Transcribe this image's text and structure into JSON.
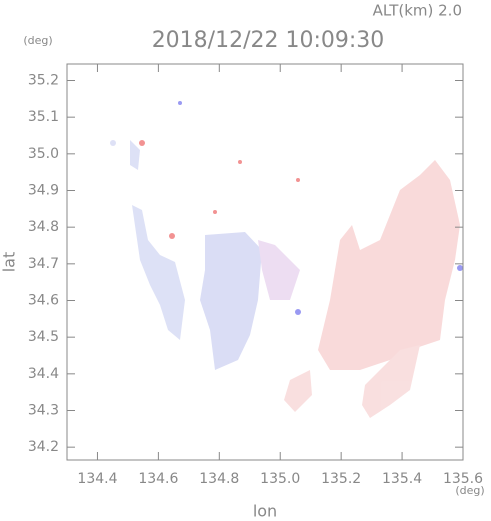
{
  "chart_data": {
    "type": "map",
    "title": "2018/12/22 10:09:30",
    "subtitle": "ALT(km) 2.0",
    "x_label": "lon",
    "y_label": "lat",
    "x_unit": "(deg)",
    "y_unit": "(deg)",
    "xlim": [
      134.3,
      135.6
    ],
    "ylim": [
      34.165,
      35.245
    ],
    "xticks": [
      {
        "value": 134.4,
        "label": "134.4"
      },
      {
        "value": 134.6,
        "label": "134.6"
      },
      {
        "value": 134.8,
        "label": "134.8"
      },
      {
        "value": 135.0,
        "label": "135.0"
      },
      {
        "value": 135.2,
        "label": "135.2"
      },
      {
        "value": 135.4,
        "label": "135.4"
      },
      {
        "value": 135.6,
        "label": "135.6"
      }
    ],
    "yticks": [
      {
        "value": 34.2,
        "label": "34.2"
      },
      {
        "value": 34.3,
        "label": "34.3"
      },
      {
        "value": 34.4,
        "label": "34.4"
      },
      {
        "value": 34.5,
        "label": "34.5"
      },
      {
        "value": 34.6,
        "label": "34.6"
      },
      {
        "value": 34.7,
        "label": "34.7"
      },
      {
        "value": 34.8,
        "label": "34.8"
      },
      {
        "value": 34.9,
        "label": "34.9"
      },
      {
        "value": 35.0,
        "label": "35.0"
      },
      {
        "value": 35.1,
        "label": "35.1"
      },
      {
        "value": 35.2,
        "label": "35.2"
      }
    ],
    "axis_color": "#888888"
  }
}
